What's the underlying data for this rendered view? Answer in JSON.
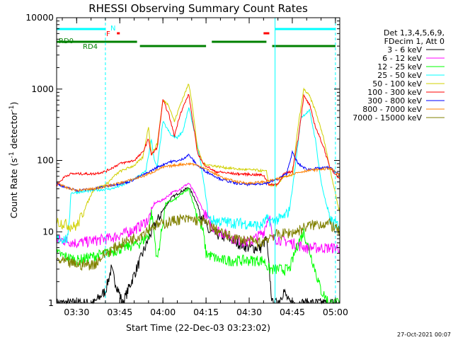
{
  "chart_data": {
    "type": "line",
    "title": "RHESSI Observing Summary Count Rates",
    "xlabel": "Start Time (22-Dec-03 03:23:02)",
    "ylabel": "Count Rate (s⁻¹ detector⁻¹)",
    "ylabel_main": "Count Rate (s",
    "ylabel_sup1": "-1",
    "ylabel_mid": " detector",
    "ylabel_sup2": "-1",
    "ylabel_end": ")",
    "yscale": "log",
    "ylim": [
      1,
      10000
    ],
    "xlim": [
      "03:23:02",
      "05:01:30"
    ],
    "x_ticks": [
      "03:30",
      "03:45",
      "04:00",
      "04:15",
      "04:30",
      "04:45",
      "05:00"
    ],
    "y_ticks": [
      "1",
      "10",
      "100",
      "1000",
      "10000"
    ],
    "legend": {
      "position": "top-right",
      "header": [
        "Det 1,3,4,5,6,9,",
        "FDecim 1, Att 0"
      ]
    },
    "series": [
      {
        "name": "3 - 6 keV",
        "color": "#000000",
        "points": [
          [
            "03:23:02",
            1
          ],
          [
            "03:36",
            1
          ],
          [
            "03:40",
            1.5
          ],
          [
            "03:42",
            3
          ],
          [
            "03:46",
            1
          ],
          [
            "03:52",
            4
          ],
          [
            "03:56",
            10
          ],
          [
            "04:00",
            20
          ],
          [
            "04:03",
            30
          ],
          [
            "04:06",
            36
          ],
          [
            "04:09",
            42
          ],
          [
            "04:11",
            30
          ],
          [
            "04:14",
            15
          ],
          [
            "04:16",
            10
          ],
          [
            "04:20",
            9
          ],
          [
            "04:30",
            6
          ],
          [
            "04:34",
            6
          ],
          [
            "04:36",
            8
          ],
          [
            "04:38",
            1
          ],
          [
            "04:40",
            1
          ],
          [
            "04:42",
            1.5
          ],
          [
            "04:44",
            1
          ],
          [
            "04:46",
            1
          ],
          [
            "04:50",
            1
          ],
          [
            "05:01:30",
            1
          ]
        ]
      },
      {
        "name": "6 - 12 keV",
        "color": "#ff00ff",
        "points": [
          [
            "03:23:02",
            8
          ],
          [
            "03:30",
            7
          ],
          [
            "03:40",
            8
          ],
          [
            "03:43",
            8.5
          ],
          [
            "03:48",
            10
          ],
          [
            "03:52",
            12
          ],
          [
            "03:55",
            15
          ],
          [
            "03:57",
            25
          ],
          [
            "04:00",
            28
          ],
          [
            "04:03",
            35
          ],
          [
            "04:06",
            40
          ],
          [
            "04:09",
            48
          ],
          [
            "04:11",
            35
          ],
          [
            "04:14",
            20
          ],
          [
            "04:17",
            12
          ],
          [
            "04:20",
            10
          ],
          [
            "04:25",
            8
          ],
          [
            "04:30",
            7
          ],
          [
            "04:35",
            10
          ],
          [
            "04:37",
            18
          ],
          [
            "04:38",
            8
          ],
          [
            "04:40",
            8
          ],
          [
            "04:45",
            7
          ],
          [
            "04:50",
            6
          ],
          [
            "04:58",
            6
          ],
          [
            "05:01:30",
            6
          ]
        ]
      },
      {
        "name": "12 - 25 keV",
        "color": "#00ff00",
        "points": [
          [
            "03:23:02",
            5
          ],
          [
            "03:30",
            4
          ],
          [
            "03:40",
            5
          ],
          [
            "03:46",
            6
          ],
          [
            "03:52",
            7
          ],
          [
            "03:55",
            9
          ],
          [
            "03:56",
            20
          ],
          [
            "03:58",
            4
          ],
          [
            "04:01",
            25
          ],
          [
            "04:04",
            28
          ],
          [
            "04:07",
            35
          ],
          [
            "04:09",
            40
          ],
          [
            "04:11",
            22
          ],
          [
            "04:14",
            10
          ],
          [
            "04:15",
            5
          ],
          [
            "04:20",
            4
          ],
          [
            "04:30",
            4
          ],
          [
            "04:35",
            4
          ],
          [
            "04:37",
            3
          ],
          [
            "04:40",
            3
          ],
          [
            "04:44",
            3
          ],
          [
            "04:47",
            7
          ],
          [
            "04:49",
            10
          ],
          [
            "04:52",
            4
          ],
          [
            "04:55",
            1.5
          ],
          [
            "04:58",
            1
          ],
          [
            "05:01:30",
            1
          ]
        ]
      },
      {
        "name": "25 - 50 keV",
        "color": "#00ffff",
        "points": [
          [
            "03:23:02",
            8
          ],
          [
            "03:27",
            8
          ],
          [
            "03:28",
            35
          ],
          [
            "03:36",
            38
          ],
          [
            "03:42",
            40
          ],
          [
            "03:46",
            45
          ],
          [
            "03:50",
            55
          ],
          [
            "03:54",
            70
          ],
          [
            "03:56",
            200
          ],
          [
            "03:57",
            100
          ],
          [
            "03:58",
            80
          ],
          [
            "04:00",
            350
          ],
          [
            "04:03",
            220
          ],
          [
            "04:05",
            210
          ],
          [
            "04:07",
            260
          ],
          [
            "04:09",
            550
          ],
          [
            "04:11",
            250
          ],
          [
            "04:13",
            100
          ],
          [
            "04:15",
            30
          ],
          [
            "04:16",
            15
          ],
          [
            "04:20",
            14
          ],
          [
            "04:30",
            13
          ],
          [
            "04:34",
            12
          ],
          [
            "04:36",
            15
          ],
          [
            "04:38",
            14
          ],
          [
            "04:40",
            15
          ],
          [
            "04:42",
            16
          ],
          [
            "04:44",
            20
          ],
          [
            "04:46",
            80
          ],
          [
            "04:48",
            400
          ],
          [
            "04:51",
            500
          ],
          [
            "04:53",
            200
          ],
          [
            "04:55",
            50
          ],
          [
            "04:58",
            15
          ],
          [
            "05:01:30",
            12
          ]
        ]
      },
      {
        "name": "50 - 100 keV",
        "color": "#d0d000",
        "points": [
          [
            "03:23:02",
            14
          ],
          [
            "03:26",
            13
          ],
          [
            "03:28",
            12
          ],
          [
            "03:30",
            12
          ],
          [
            "03:36",
            40
          ],
          [
            "03:40",
            45
          ],
          [
            "03:43",
            60
          ],
          [
            "03:45",
            70
          ],
          [
            "03:50",
            85
          ],
          [
            "03:53",
            110
          ],
          [
            "03:55",
            300
          ],
          [
            "03:56",
            120
          ],
          [
            "03:58",
            170
          ],
          [
            "04:00",
            700
          ],
          [
            "04:02",
            600
          ],
          [
            "04:04",
            350
          ],
          [
            "04:06",
            600
          ],
          [
            "04:09",
            1200
          ],
          [
            "04:10",
            700
          ],
          [
            "04:12",
            150
          ],
          [
            "04:14",
            90
          ],
          [
            "04:17",
            85
          ],
          [
            "04:21",
            80
          ],
          [
            "04:27",
            75
          ],
          [
            "04:33",
            73
          ],
          [
            "04:36",
            70
          ],
          [
            "04:37",
            45
          ],
          [
            "04:40",
            45
          ],
          [
            "04:42",
            60
          ],
          [
            "04:45",
            60
          ],
          [
            "04:47",
            300
          ],
          [
            "04:49",
            1000
          ],
          [
            "04:51",
            800
          ],
          [
            "04:53",
            500
          ],
          [
            "04:56",
            200
          ],
          [
            "04:58",
            80
          ],
          [
            "05:01:30",
            18
          ]
        ]
      },
      {
        "name": "100 - 300 keV",
        "color": "#ff0000",
        "points": [
          [
            "03:23:02",
            45
          ],
          [
            "03:26",
            60
          ],
          [
            "03:28",
            65
          ],
          [
            "03:36",
            65
          ],
          [
            "03:40",
            70
          ],
          [
            "03:45",
            90
          ],
          [
            "03:50",
            100
          ],
          [
            "03:53",
            130
          ],
          [
            "03:55",
            200
          ],
          [
            "03:56",
            120
          ],
          [
            "03:58",
            150
          ],
          [
            "04:00",
            700
          ],
          [
            "04:02",
            450
          ],
          [
            "04:04",
            220
          ],
          [
            "04:06",
            450
          ],
          [
            "04:09",
            850
          ],
          [
            "04:10",
            450
          ],
          [
            "04:12",
            130
          ],
          [
            "04:14",
            90
          ],
          [
            "04:18",
            70
          ],
          [
            "04:25",
            65
          ],
          [
            "04:30",
            64
          ],
          [
            "04:35",
            62
          ],
          [
            "04:37",
            45
          ],
          [
            "04:40",
            47
          ],
          [
            "04:42",
            65
          ],
          [
            "04:45",
            70
          ],
          [
            "04:47",
            200
          ],
          [
            "04:49",
            800
          ],
          [
            "04:51",
            600
          ],
          [
            "04:53",
            300
          ],
          [
            "04:56",
            150
          ],
          [
            "04:58",
            80
          ],
          [
            "05:01:30",
            55
          ]
        ]
      },
      {
        "name": "300 - 800 keV",
        "color": "#0000ff",
        "points": [
          [
            "03:23:02",
            48
          ],
          [
            "03:26",
            42
          ],
          [
            "03:30",
            38
          ],
          [
            "03:36",
            40
          ],
          [
            "03:42",
            45
          ],
          [
            "03:48",
            50
          ],
          [
            "03:54",
            65
          ],
          [
            "03:58",
            80
          ],
          [
            "04:02",
            95
          ],
          [
            "04:06",
            100
          ],
          [
            "04:09",
            120
          ],
          [
            "04:12",
            85
          ],
          [
            "04:15",
            70
          ],
          [
            "04:20",
            55
          ],
          [
            "04:25",
            48
          ],
          [
            "04:30",
            46
          ],
          [
            "04:36",
            48
          ],
          [
            "04:40",
            55
          ],
          [
            "04:43",
            65
          ],
          [
            "04:45",
            130
          ],
          [
            "04:47",
            90
          ],
          [
            "04:50",
            75
          ],
          [
            "04:55",
            78
          ],
          [
            "04:58",
            80
          ],
          [
            "05:01:30",
            62
          ]
        ]
      },
      {
        "name": "800 - 7000 keV",
        "color": "#ff8000",
        "points": [
          [
            "03:23:02",
            50
          ],
          [
            "03:26",
            42
          ],
          [
            "03:30",
            38
          ],
          [
            "03:36",
            40
          ],
          [
            "03:42",
            45
          ],
          [
            "03:48",
            52
          ],
          [
            "03:54",
            62
          ],
          [
            "04:00",
            80
          ],
          [
            "04:06",
            88
          ],
          [
            "04:10",
            90
          ],
          [
            "04:14",
            80
          ],
          [
            "04:18",
            65
          ],
          [
            "04:22",
            55
          ],
          [
            "04:26",
            50
          ],
          [
            "04:30",
            48
          ],
          [
            "04:35",
            50
          ],
          [
            "04:40",
            55
          ],
          [
            "04:45",
            65
          ],
          [
            "04:50",
            72
          ],
          [
            "04:55",
            75
          ],
          [
            "04:58",
            78
          ],
          [
            "05:01:30",
            62
          ]
        ]
      },
      {
        "name": "7000 - 15000 keV",
        "color": "#808000",
        "points": [
          [
            "03:23:02",
            4
          ],
          [
            "03:30",
            3.5
          ],
          [
            "03:36",
            3.5
          ],
          [
            "03:40",
            5
          ],
          [
            "03:46",
            7
          ],
          [
            "03:52",
            9
          ],
          [
            "03:56",
            12
          ],
          [
            "04:00",
            13
          ],
          [
            "04:05",
            15
          ],
          [
            "04:10",
            15
          ],
          [
            "04:14",
            14
          ],
          [
            "04:18",
            11
          ],
          [
            "04:22",
            9
          ],
          [
            "04:26",
            8
          ],
          [
            "04:30",
            7.5
          ],
          [
            "04:34",
            7
          ],
          [
            "04:36",
            8
          ],
          [
            "04:38",
            9
          ],
          [
            "04:42",
            9.5
          ],
          [
            "04:46",
            10
          ],
          [
            "04:50",
            12
          ],
          [
            "04:54",
            13
          ],
          [
            "04:58",
            13
          ],
          [
            "05:01:30",
            10
          ]
        ]
      }
    ],
    "flags": {
      "labels": {
        "N": "N",
        "F": "F",
        "RD0": "RD0",
        "RD4": "RD4"
      },
      "night": [
        [
          "03:23:02",
          "03:40"
        ],
        [
          "04:39",
          "05:00"
        ]
      ],
      "flare": [
        [
          "03:44",
          "03:45"
        ],
        [
          "04:35",
          "04:37"
        ]
      ],
      "decimation": [
        [
          "03:23:02",
          "03:51"
        ],
        [
          "03:52",
          "04:15"
        ],
        [
          "04:17",
          "04:36"
        ],
        [
          "04:38",
          "05:00"
        ]
      ],
      "saa_lines": [
        "03:23:02",
        "04:39"
      ],
      "night_lines": [
        "03:40",
        "05:00"
      ]
    }
  },
  "timestamp": "27-Oct-2021 00:07"
}
